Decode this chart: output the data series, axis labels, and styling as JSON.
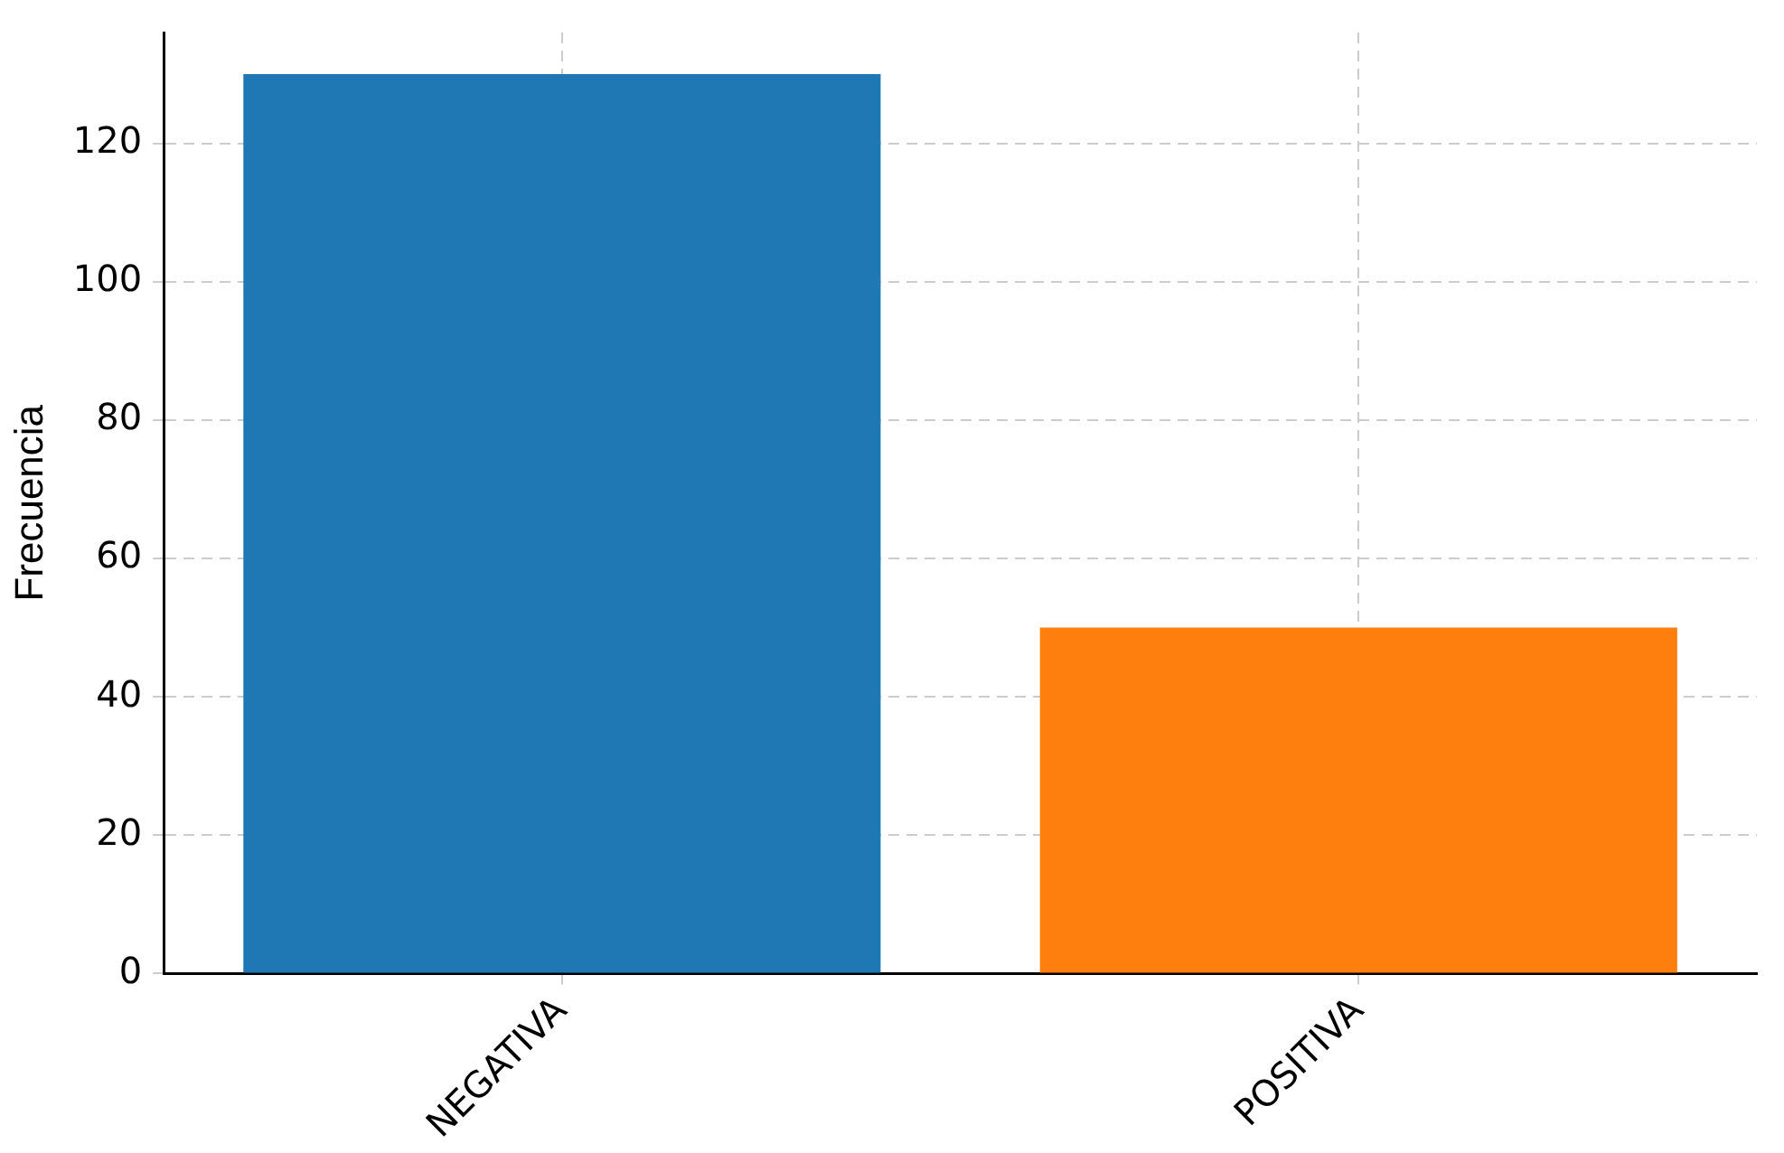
{
  "chart_data": {
    "type": "bar",
    "ylabel": "Frecuencia",
    "categories": [
      "NEGATIVA",
      "POSITIVA"
    ],
    "values": [
      130,
      50
    ],
    "colors": [
      "#1f77b4",
      "#ff7f0e"
    ],
    "ylim": [
      0,
      136
    ],
    "yticks": [
      0,
      20,
      40,
      60,
      80,
      100,
      120
    ],
    "grid": true
  }
}
